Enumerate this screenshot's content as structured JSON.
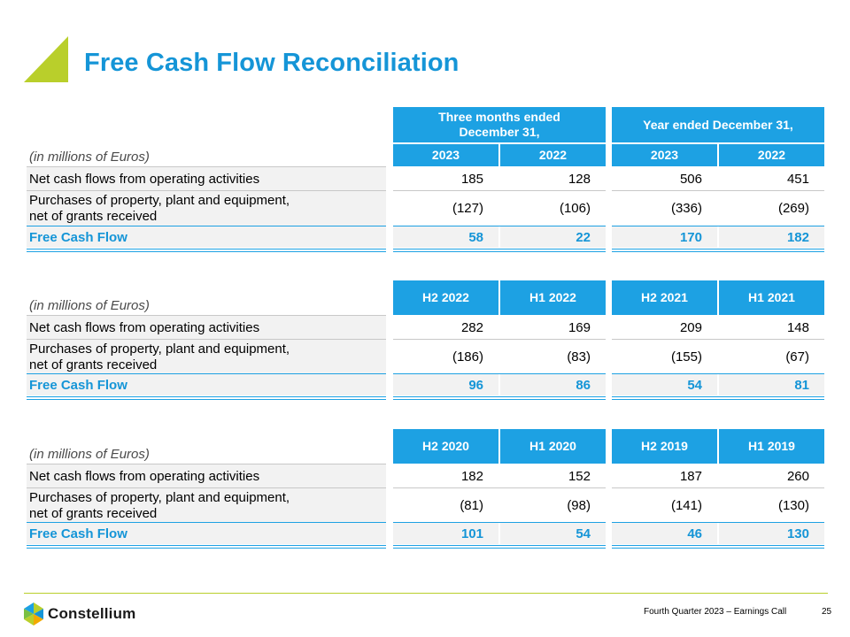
{
  "title": "Free Cash Flow Reconciliation",
  "tables": [
    {
      "unit_label": "(in millions of Euros)",
      "group_headers": [
        "Three months ended December 31,",
        "Year ended December 31,"
      ],
      "columns": [
        "2023",
        "2022",
        "2023",
        "2022"
      ],
      "rows": [
        {
          "label": "Net cash flows from operating activities",
          "values": [
            "185",
            "128",
            "506",
            "451"
          ]
        },
        {
          "label_line1": "Purchases of property, plant and equipment,",
          "label_line2": "net of grants received",
          "values": [
            "(127)",
            "(106)",
            "(336)",
            "(269)"
          ]
        },
        {
          "label": "Free Cash Flow",
          "values": [
            "58",
            "22",
            "170",
            "182"
          ]
        }
      ]
    },
    {
      "unit_label": "(in millions of Euros)",
      "columns": [
        "H2 2022",
        "H1 2022",
        "H2 2021",
        "H1 2021"
      ],
      "rows": [
        {
          "label": "Net cash flows from operating activities",
          "values": [
            "282",
            "169",
            "209",
            "148"
          ]
        },
        {
          "label_line1": "Purchases of property, plant and equipment,",
          "label_line2": "net of grants received",
          "values": [
            "(186)",
            "(83)",
            "(155)",
            "(67)"
          ]
        },
        {
          "label": "Free Cash Flow",
          "values": [
            "96",
            "86",
            "54",
            "81"
          ]
        }
      ]
    },
    {
      "unit_label": "(in millions of Euros)",
      "columns": [
        "H2 2020",
        "H1 2020",
        "H2 2019",
        "H1 2019"
      ],
      "rows": [
        {
          "label": "Net cash flows from operating activities",
          "values": [
            "182",
            "152",
            "187",
            "260"
          ]
        },
        {
          "label_line1": "Purchases of property, plant and equipment,",
          "label_line2": "net of grants received",
          "values": [
            "(81)",
            "(98)",
            "(141)",
            "(130)"
          ]
        },
        {
          "label": "Free Cash Flow",
          "values": [
            "101",
            "54",
            "46",
            "130"
          ]
        }
      ]
    }
  ],
  "footer": {
    "logo_text": "Constellium",
    "caption": "Fourth Quarter 2023 – Earnings Call",
    "page_number": "25"
  },
  "colors": {
    "title_blue": "#1595d7",
    "header_blue": "#1da1e3",
    "accent_green": "#b9cf2b"
  }
}
